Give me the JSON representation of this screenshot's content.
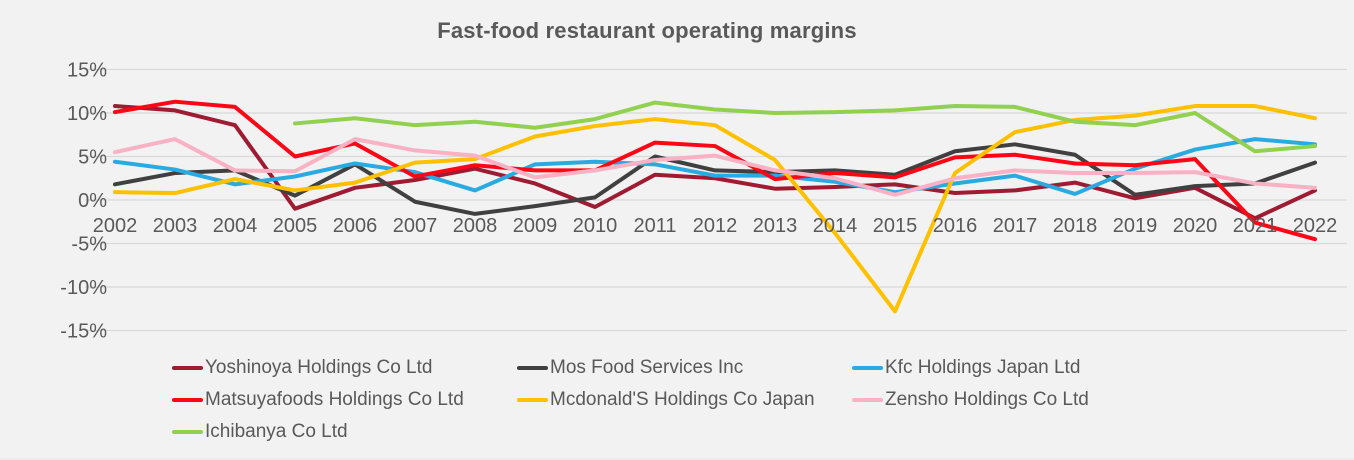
{
  "colors": {
    "background": "#F2F2F2",
    "gridline": "#D9D9D9",
    "text": "#595959"
  },
  "chart_data": {
    "type": "line",
    "title": "Fast-food restaurant operating margins",
    "unit": "%",
    "ylim": [
      -15,
      15
    ],
    "grid": "horizontal",
    "legend_position": "bottom-left",
    "x_labels": [
      "2002",
      "2003",
      "2004",
      "2005",
      "2006",
      "2007",
      "2008",
      "2009",
      "2010",
      "2011",
      "2012",
      "2013",
      "2014",
      "2015",
      "2016",
      "2017",
      "2018",
      "2019",
      "2020",
      "2021",
      "2022"
    ],
    "y_ticks": [
      {
        "value": 15,
        "label": "15%"
      },
      {
        "value": 10,
        "label": "10%"
      },
      {
        "value": 5,
        "label": "5%"
      },
      {
        "value": 0,
        "label": "0%"
      },
      {
        "value": -5,
        "label": "-5%"
      },
      {
        "value": -10,
        "label": "-10%"
      },
      {
        "value": -15,
        "label": "-15%"
      }
    ],
    "series": [
      {
        "name": "Yoshinoya Holdings Co Ltd",
        "color": "#9E1B32",
        "values": [
          10.8,
          10.3,
          8.6,
          -1.0,
          1.4,
          2.3,
          3.6,
          1.9,
          -0.8,
          2.9,
          2.5,
          1.3,
          1.5,
          1.8,
          0.8,
          1.1,
          2.0,
          0.2,
          1.4,
          -2.1,
          1.1
        ]
      },
      {
        "name": "Mos Food Services Inc",
        "color": "#404040",
        "values": [
          1.8,
          3.1,
          3.4,
          0.5,
          4.1,
          -0.2,
          -1.6,
          -0.7,
          0.3,
          5.0,
          3.4,
          3.2,
          3.4,
          2.9,
          5.6,
          6.4,
          5.2,
          0.6,
          1.6,
          1.9,
          4.3
        ]
      },
      {
        "name": "Kfc Holdings Japan Ltd",
        "color": "#29ABE2",
        "values": [
          4.4,
          3.5,
          1.8,
          2.7,
          4.2,
          3.2,
          1.1,
          4.1,
          4.4,
          4.1,
          2.8,
          2.8,
          2.1,
          0.9,
          1.9,
          2.8,
          0.7,
          3.6,
          5.8,
          7.0,
          6.4
        ]
      },
      {
        "name": "Matsuyafoods Holdings Co Ltd",
        "color": "#FB0716",
        "values": [
          10.1,
          11.3,
          10.7,
          5.0,
          6.5,
          2.7,
          4.0,
          3.4,
          3.4,
          6.6,
          6.2,
          2.4,
          3.1,
          2.6,
          4.9,
          5.2,
          4.2,
          4.0,
          4.7,
          -2.6,
          -4.5
        ]
      },
      {
        "name": "Mcdonald'S Holdings Co Japan",
        "color": "#FFC000",
        "values": [
          0.9,
          0.8,
          2.4,
          1.1,
          2.0,
          4.3,
          4.7,
          7.3,
          8.5,
          9.3,
          8.6,
          4.6,
          -3.8,
          -12.8,
          3.1,
          7.8,
          9.2,
          9.7,
          10.8,
          10.8,
          9.4
        ]
      },
      {
        "name": "Zensho Holdings Co Ltd",
        "color": "#F9B1C4",
        "values": [
          5.5,
          7.0,
          3.4,
          3.3,
          7.0,
          5.7,
          5.1,
          2.6,
          3.4,
          4.6,
          5.1,
          3.4,
          2.5,
          0.6,
          2.5,
          3.4,
          3.1,
          3.1,
          3.2,
          1.9,
          1.4
        ]
      },
      {
        "name": "Ichibanya Co Ltd",
        "color": "#92D050",
        "values": [
          null,
          null,
          null,
          8.8,
          9.4,
          8.6,
          9.0,
          8.3,
          9.3,
          11.2,
          10.4,
          10.0,
          10.1,
          10.3,
          10.8,
          10.7,
          9.0,
          8.6,
          10.0,
          5.6,
          6.2
        ]
      }
    ]
  }
}
